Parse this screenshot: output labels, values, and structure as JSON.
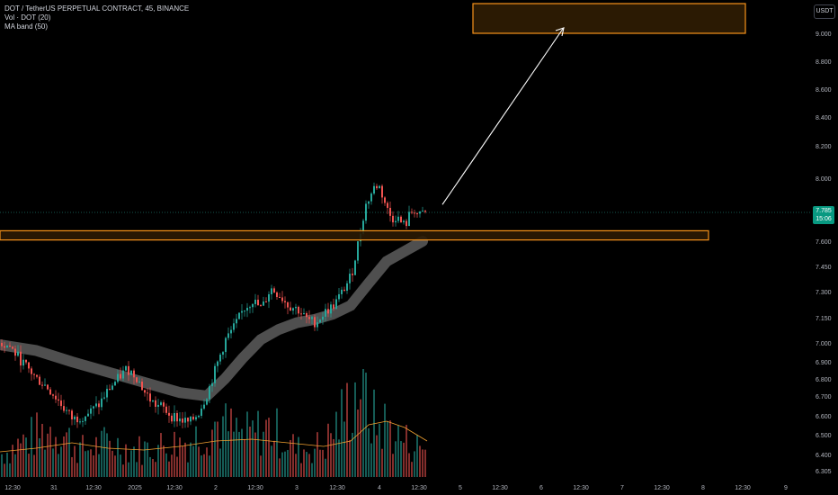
{
  "legend": {
    "symbol": "DOT / TetherUS PERPETUAL CONTRACT, 45, BINANCE",
    "volume": "Vol · DOT (20)",
    "ma_band": "MA band (50)"
  },
  "currency_button": "USDT",
  "last_price": {
    "value": "7.785",
    "countdown": "15:06"
  },
  "colors": {
    "background": "#000000",
    "up": "#26a69a",
    "down": "#ef5350",
    "ma_band": "#5d5d5d",
    "vol_ma": "#f0a030",
    "zone_border": "#f7931a",
    "zone_fill": "#2b1a03",
    "arrow": "#ffffff",
    "price_tag": "#089981"
  },
  "chart_data": {
    "type": "candlestick",
    "y_axis": {
      "range": [
        6.28,
        9.2
      ],
      "ticks": [
        "9.000",
        "8.800",
        "8.600",
        "8.400",
        "8.200",
        "8.000",
        "7.785",
        "7.600",
        "7.450",
        "7.300",
        "7.150",
        "7.000",
        "6.900",
        "6.800",
        "6.700",
        "6.600",
        "6.500",
        "6.400",
        "6.305"
      ]
    },
    "x_axis": {
      "ticks": [
        "12:30",
        "31",
        "12:30",
        "2025",
        "12:30",
        "2",
        "12:30",
        "3",
        "12:30",
        "4",
        "12:30",
        "5",
        "12:30",
        "6",
        "12:30",
        "7",
        "12:30",
        "8",
        "12:30",
        "9"
      ]
    },
    "price_path": [
      [
        0,
        7.0
      ],
      [
        10,
        6.98
      ],
      [
        20,
        6.92
      ],
      [
        30,
        6.86
      ],
      [
        40,
        6.8
      ],
      [
        50,
        6.76
      ],
      [
        60,
        6.7
      ],
      [
        70,
        6.64
      ],
      [
        80,
        6.58
      ],
      [
        90,
        6.6
      ],
      [
        100,
        6.62
      ],
      [
        110,
        6.66
      ],
      [
        120,
        6.74
      ],
      [
        130,
        6.8
      ],
      [
        140,
        6.86
      ],
      [
        150,
        6.82
      ],
      [
        160,
        6.72
      ],
      [
        170,
        6.66
      ],
      [
        180,
        6.64
      ],
      [
        190,
        6.6
      ],
      [
        200,
        6.58
      ],
      [
        210,
        6.56
      ],
      [
        220,
        6.62
      ],
      [
        230,
        6.72
      ],
      [
        240,
        6.88
      ],
      [
        250,
        7.02
      ],
      [
        260,
        7.1
      ],
      [
        270,
        7.2
      ],
      [
        280,
        7.25
      ],
      [
        290,
        7.2
      ],
      [
        300,
        7.32
      ],
      [
        310,
        7.28
      ],
      [
        320,
        7.22
      ],
      [
        330,
        7.2
      ],
      [
        340,
        7.14
      ],
      [
        350,
        7.12
      ],
      [
        360,
        7.18
      ],
      [
        370,
        7.22
      ],
      [
        380,
        7.3
      ],
      [
        390,
        7.4
      ],
      [
        400,
        7.66
      ],
      [
        405,
        7.82
      ],
      [
        410,
        7.88
      ],
      [
        415,
        7.94
      ],
      [
        420,
        7.96
      ],
      [
        425,
        7.88
      ],
      [
        430,
        7.8
      ],
      [
        435,
        7.74
      ],
      [
        440,
        7.76
      ],
      [
        445,
        7.72
      ],
      [
        450,
        7.7
      ],
      [
        455,
        7.78
      ],
      [
        460,
        7.8
      ],
      [
        465,
        7.76
      ],
      [
        470,
        7.78
      ],
      [
        475,
        7.785
      ]
    ],
    "volume_path": [
      [
        0,
        25
      ],
      [
        30,
        42
      ],
      [
        60,
        55
      ],
      [
        90,
        30
      ],
      [
        120,
        38
      ],
      [
        150,
        30
      ],
      [
        180,
        35
      ],
      [
        210,
        40
      ],
      [
        240,
        60
      ],
      [
        270,
        45
      ],
      [
        300,
        55
      ],
      [
        330,
        30
      ],
      [
        360,
        35
      ],
      [
        390,
        85
      ],
      [
        400,
        110
      ],
      [
        410,
        70
      ],
      [
        420,
        55
      ],
      [
        430,
        60
      ],
      [
        440,
        45
      ],
      [
        450,
        40
      ],
      [
        460,
        35
      ],
      [
        475,
        30
      ]
    ],
    "vol_ma_path": [
      [
        0,
        28
      ],
      [
        40,
        32
      ],
      [
        80,
        38
      ],
      [
        120,
        32
      ],
      [
        160,
        30
      ],
      [
        200,
        34
      ],
      [
        240,
        40
      ],
      [
        280,
        42
      ],
      [
        320,
        38
      ],
      [
        360,
        34
      ],
      [
        390,
        40
      ],
      [
        410,
        58
      ],
      [
        430,
        62
      ],
      [
        450,
        55
      ],
      [
        465,
        46
      ],
      [
        475,
        40
      ]
    ],
    "ma_band_path": [
      [
        0,
        6.99
      ],
      [
        40,
        6.96
      ],
      [
        80,
        6.9
      ],
      [
        120,
        6.84
      ],
      [
        160,
        6.78
      ],
      [
        200,
        6.72
      ],
      [
        230,
        6.7
      ],
      [
        250,
        6.8
      ],
      [
        270,
        6.92
      ],
      [
        290,
        7.02
      ],
      [
        310,
        7.08
      ],
      [
        330,
        7.12
      ],
      [
        350,
        7.14
      ],
      [
        370,
        7.17
      ],
      [
        390,
        7.22
      ],
      [
        410,
        7.35
      ],
      [
        430,
        7.48
      ],
      [
        450,
        7.54
      ],
      [
        470,
        7.6
      ]
    ],
    "annotations": {
      "support_zone": {
        "y_low": 7.608,
        "y_high": 7.667
      },
      "target_zone": {
        "y_low": 8.98,
        "y_high": 9.2
      },
      "arrow": {
        "from_y": 7.8,
        "to_y": 9.05
      },
      "last_price_line": 7.785
    }
  }
}
